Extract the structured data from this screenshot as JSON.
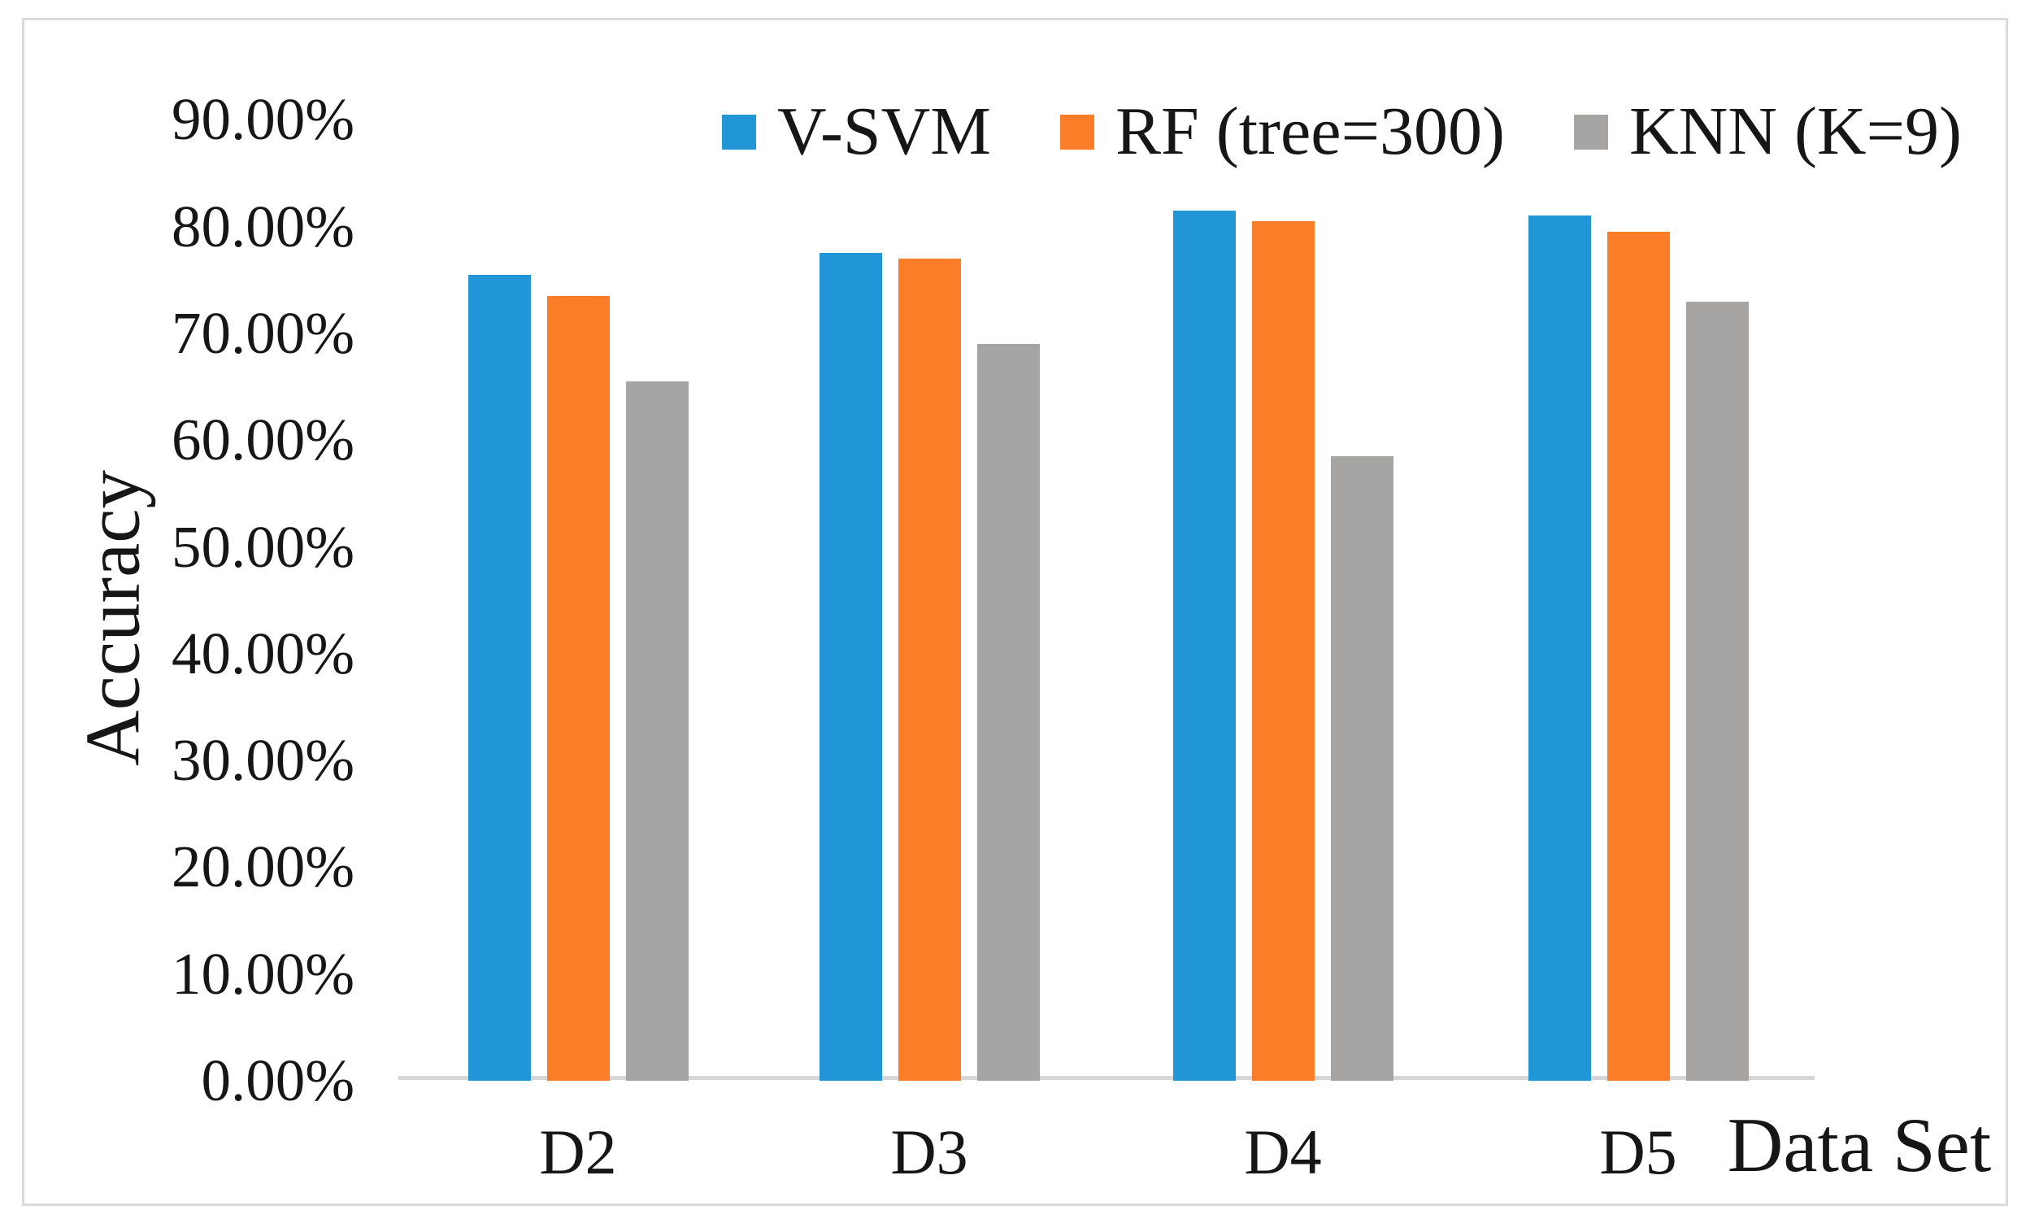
{
  "figure": {
    "background": "#ffffff",
    "frame_color": "#dbdbdb"
  },
  "chart_data": {
    "type": "bar",
    "title": "",
    "categories": [
      "D2",
      "D3",
      "D4",
      "D5"
    ],
    "series": [
      {
        "name": "V-SVM",
        "color": "#2196d6",
        "values": [
          75.5,
          77.5,
          81.5,
          81.0
        ]
      },
      {
        "name": "RF (tree=300)",
        "color": "#fb7d27",
        "values": [
          73.5,
          77.0,
          80.5,
          79.5
        ]
      },
      {
        "name": "KNN (K=9)",
        "color": "#a6a5a3",
        "values": [
          65.5,
          69.0,
          58.5,
          73.0
        ]
      }
    ],
    "xlabel": "Data Set",
    "ylabel": "Accuracy",
    "ylim": [
      0,
      90
    ],
    "ytick_step": 10,
    "ytick_labels": [
      "0.00%",
      "10.00%",
      "20.00%",
      "30.00%",
      "40.00%",
      "50.00%",
      "60.00%",
      "70.00%",
      "80.00%",
      "90.00%"
    ],
    "value_unit": "percent",
    "grid": false,
    "legend_position": "top",
    "axis_line_color": "#d6d6d6"
  }
}
